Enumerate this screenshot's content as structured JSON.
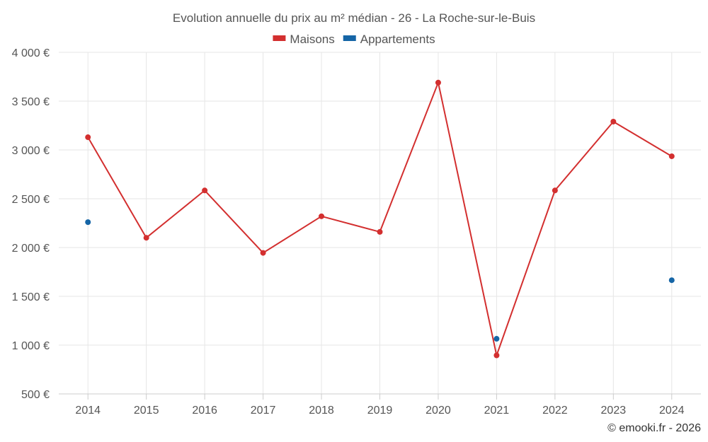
{
  "colors": {
    "maisons": "#d32f2f",
    "appartements": "#1565a6"
  },
  "credit": "© emooki.fr - 2026",
  "chart_data": {
    "type": "line",
    "title": "Evolution annuelle du prix au m² médian - 26 - La Roche-sur-le-Buis",
    "categories": [
      "2014",
      "2015",
      "2016",
      "2017",
      "2018",
      "2019",
      "2020",
      "2021",
      "2022",
      "2023",
      "2024"
    ],
    "ylim": [
      500,
      4000
    ],
    "yticks": [
      500,
      1000,
      1500,
      2000,
      2500,
      3000,
      3500,
      4000
    ],
    "ytick_labels": [
      "500 €",
      "1 000 €",
      "1 500 €",
      "2 000 €",
      "2 500 €",
      "3 000 €",
      "3 500 €",
      "4 000 €"
    ],
    "grid": true,
    "legend_position": "top-center",
    "series": [
      {
        "name": "Maisons",
        "color": "#d32f2f",
        "line": true,
        "values": [
          3130,
          2100,
          2585,
          1945,
          2320,
          2160,
          3690,
          895,
          2585,
          3290,
          2935
        ]
      },
      {
        "name": "Appartements",
        "color": "#1565a6",
        "line": false,
        "values": [
          2260,
          null,
          null,
          null,
          null,
          null,
          null,
          1065,
          null,
          null,
          1665
        ]
      }
    ]
  }
}
